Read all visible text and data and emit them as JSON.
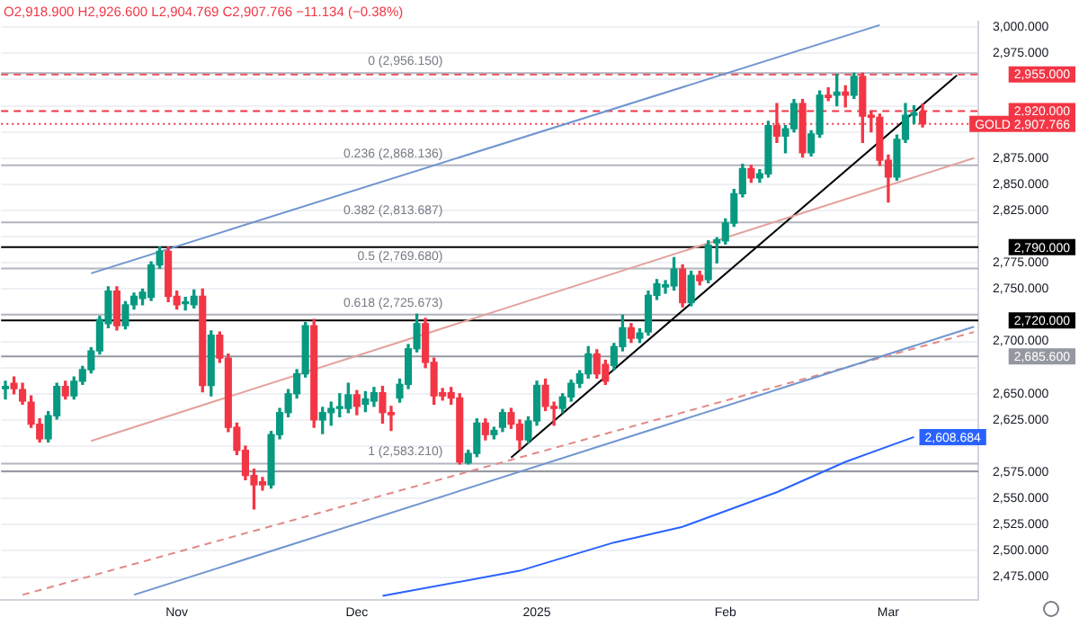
{
  "chart_data": {
    "type": "candlestick",
    "title": "O2,918.900 H2,926.600 L2,904.769 C2,907.766 −11.134 (−0.38%)",
    "categories": [
      null,
      null,
      null,
      null,
      null,
      null,
      null,
      null,
      null,
      null,
      null,
      null,
      null,
      null,
      null,
      null,
      null,
      null,
      null,
      null,
      "Nov",
      null,
      null,
      null,
      null,
      null,
      null,
      null,
      null,
      null,
      null,
      null,
      null,
      null,
      null,
      null,
      null,
      null,
      null,
      null,
      null,
      "Dec",
      null,
      null,
      null,
      null,
      null,
      null,
      null,
      null,
      null,
      null,
      null,
      null,
      null,
      null,
      null,
      null,
      null,
      null,
      null,
      null,
      "2025",
      null,
      null,
      null,
      null,
      null,
      null,
      null,
      null,
      null,
      null,
      null,
      null,
      null,
      null,
      null,
      null,
      null,
      null,
      null,
      null,
      null,
      "Feb",
      null,
      null,
      null,
      null,
      null,
      null,
      null,
      null,
      null,
      null,
      null,
      null,
      null,
      null,
      null,
      null,
      null,
      null,
      "Mar",
      null,
      null,
      null,
      null,
      null,
      null,
      null,
      null,
      null,
      null
    ],
    "ohlc": [
      [
        2655,
        2662,
        2645,
        2657
      ],
      [
        2660,
        2666,
        2650,
        2655
      ],
      [
        2654,
        2660,
        2640,
        2643
      ],
      [
        2642,
        2648,
        2618,
        2621
      ],
      [
        2621,
        2626,
        2604,
        2607
      ],
      [
        2607,
        2633,
        2604,
        2629
      ],
      [
        2629,
        2660,
        2626,
        2657
      ],
      [
        2657,
        2662,
        2645,
        2648
      ],
      [
        2648,
        2666,
        2645,
        2662
      ],
      [
        2662,
        2676,
        2659,
        2673
      ],
      [
        2673,
        2694,
        2670,
        2691
      ],
      [
        2691,
        2724,
        2688,
        2721
      ],
      [
        2717,
        2752,
        2713,
        2748
      ],
      [
        2748,
        2752,
        2711,
        2715
      ],
      [
        2715,
        2738,
        2712,
        2735
      ],
      [
        2735,
        2746,
        2731,
        2743
      ],
      [
        2741,
        2750,
        2735,
        2747
      ],
      [
        2742,
        2776,
        2739,
        2773
      ],
      [
        2773,
        2790,
        2770,
        2786
      ],
      [
        2786,
        2790,
        2738,
        2743
      ],
      [
        2743,
        2748,
        2731,
        2735
      ],
      [
        2736,
        2742,
        2730,
        2737
      ],
      [
        2735,
        2749,
        2732,
        2743
      ],
      [
        2743,
        2750,
        2652,
        2658
      ],
      [
        2658,
        2710,
        2648,
        2706
      ],
      [
        2706,
        2709,
        2680,
        2684
      ],
      [
        2684,
        2688,
        2614,
        2618
      ],
      [
        2618,
        2622,
        2592,
        2596
      ],
      [
        2596,
        2600,
        2568,
        2572
      ],
      [
        2572,
        2578,
        2540,
        2563
      ],
      [
        2566,
        2570,
        2558,
        2563
      ],
      [
        2563,
        2614,
        2560,
        2611
      ],
      [
        2611,
        2636,
        2607,
        2632
      ],
      [
        2632,
        2654,
        2628,
        2650
      ],
      [
        2650,
        2673,
        2646,
        2669
      ],
      [
        2669,
        2718,
        2666,
        2715
      ],
      [
        2715,
        2721,
        2618,
        2625
      ],
      [
        2625,
        2637,
        2612,
        2632
      ],
      [
        2632,
        2642,
        2620,
        2636
      ],
      [
        2636,
        2650,
        2628,
        2637
      ],
      [
        2636,
        2660,
        2632,
        2649
      ],
      [
        2649,
        2653,
        2630,
        2638
      ],
      [
        2640,
        2652,
        2633,
        2645
      ],
      [
        2643,
        2656,
        2638,
        2651
      ],
      [
        2651,
        2657,
        2622,
        2632
      ],
      [
        2632,
        2638,
        2615,
        2630
      ],
      [
        2646,
        2664,
        2642,
        2659
      ],
      [
        2659,
        2697,
        2655,
        2693
      ],
      [
        2693,
        2726,
        2690,
        2717
      ],
      [
        2717,
        2722,
        2675,
        2680
      ],
      [
        2680,
        2684,
        2640,
        2648
      ],
      [
        2651,
        2655,
        2644,
        2648
      ],
      [
        2651,
        2656,
        2640,
        2646
      ],
      [
        2646,
        2650,
        2583,
        2585
      ],
      [
        2584,
        2596,
        2583,
        2593
      ],
      [
        2593,
        2626,
        2590,
        2622
      ],
      [
        2622,
        2626,
        2606,
        2611
      ],
      [
        2611,
        2618,
        2607,
        2615
      ],
      [
        2618,
        2635,
        2614,
        2632
      ],
      [
        2632,
        2636,
        2617,
        2621
      ],
      [
        2621,
        2625,
        2597,
        2606
      ],
      [
        2606,
        2628,
        2603,
        2624
      ],
      [
        2624,
        2662,
        2620,
        2658
      ],
      [
        2658,
        2664,
        2634,
        2638
      ],
      [
        2638,
        2642,
        2620,
        2636
      ],
      [
        2636,
        2650,
        2632,
        2647
      ],
      [
        2647,
        2663,
        2643,
        2660
      ],
      [
        2660,
        2672,
        2656,
        2669
      ],
      [
        2669,
        2695,
        2665,
        2688
      ],
      [
        2688,
        2692,
        2665,
        2669
      ],
      [
        2678,
        2682,
        2659,
        2662
      ],
      [
        2677,
        2698,
        2673,
        2695
      ],
      [
        2695,
        2725,
        2691,
        2713
      ],
      [
        2713,
        2717,
        2699,
        2703
      ],
      [
        2703,
        2712,
        2699,
        2708
      ],
      [
        2709,
        2748,
        2706,
        2744
      ],
      [
        2744,
        2759,
        2740,
        2755
      ],
      [
        2752,
        2758,
        2746,
        2754
      ],
      [
        2753,
        2780,
        2749,
        2769
      ],
      [
        2769,
        2773,
        2733,
        2737
      ],
      [
        2737,
        2767,
        2734,
        2763
      ],
      [
        2763,
        2767,
        2754,
        2758
      ],
      [
        2759,
        2796,
        2756,
        2792
      ],
      [
        2794,
        2799,
        2775,
        2797
      ],
      [
        2796,
        2817,
        2793,
        2813
      ],
      [
        2813,
        2845,
        2810,
        2841
      ],
      [
        2841,
        2869,
        2838,
        2865
      ],
      [
        2865,
        2868,
        2852,
        2856
      ],
      [
        2856,
        2864,
        2852,
        2860
      ],
      [
        2860,
        2910,
        2857,
        2906
      ],
      [
        2906,
        2927,
        2890,
        2896
      ],
      [
        2896,
        2906,
        2880,
        2903
      ],
      [
        2903,
        2931,
        2900,
        2927
      ],
      [
        2927,
        2931,
        2876,
        2880
      ],
      [
        2880,
        2901,
        2877,
        2898
      ],
      [
        2898,
        2939,
        2895,
        2935
      ],
      [
        2935,
        2942,
        2930,
        2933
      ],
      [
        2935,
        2955,
        2925,
        2938
      ],
      [
        2938,
        2944,
        2924,
        2935
      ],
      [
        2935,
        2956,
        2932,
        2953
      ],
      [
        2953,
        2956,
        2890,
        2915
      ],
      [
        2916,
        2920,
        2900,
        2914
      ],
      [
        2914,
        2917,
        2868,
        2873
      ],
      [
        2873,
        2878,
        2833,
        2857
      ],
      [
        2857,
        2897,
        2854,
        2893
      ],
      [
        2893,
        2927,
        2890,
        2916
      ],
      [
        2916,
        2925,
        2908,
        2918
      ],
      [
        2918.9,
        2926.6,
        2904.769,
        2907.766
      ],
      null,
      null,
      null,
      null,
      null,
      null
    ],
    "series": [
      {
        "type": "line",
        "color": "#6f95cf",
        "values": [
          null,
          null,
          null,
          null,
          null,
          null,
          null,
          null,
          null,
          null,
          2765,
          null,
          null,
          null,
          null,
          null,
          null,
          null,
          null,
          null,
          null,
          null,
          null,
          null,
          null,
          null,
          null,
          null,
          null,
          null,
          null,
          null,
          null,
          null,
          null,
          null,
          null,
          null,
          null,
          null,
          null,
          null,
          null,
          null,
          null,
          null,
          null,
          null,
          null,
          null,
          null,
          null,
          null,
          null,
          null,
          null,
          null,
          null,
          null,
          null,
          null,
          null,
          null,
          null,
          null,
          null,
          null,
          null,
          null,
          null,
          null,
          null,
          null,
          null,
          null,
          null,
          null,
          null,
          null,
          null,
          null,
          null,
          null,
          null,
          null,
          null,
          null,
          null,
          null,
          null,
          null,
          null,
          null,
          null,
          null,
          null,
          null,
          null,
          null,
          null,
          null,
          null,
          3002,
          null,
          null,
          null,
          null,
          null,
          null,
          null,
          null,
          null,
          null,
          null
        ]
      },
      {
        "type": "line",
        "color": "#e3a29c",
        "values": [
          null,
          null,
          null,
          null,
          null,
          null,
          null,
          null,
          null,
          null,
          2605,
          null,
          null,
          null,
          null,
          null,
          null,
          null,
          null,
          null,
          null,
          null,
          null,
          null,
          null,
          null,
          null,
          null,
          null,
          null,
          null,
          null,
          null,
          null,
          null,
          null,
          null,
          null,
          null,
          null,
          null,
          null,
          null,
          null,
          null,
          null,
          null,
          null,
          null,
          null,
          null,
          null,
          null,
          null,
          null,
          null,
          null,
          null,
          null,
          null,
          null,
          null,
          null,
          null,
          null,
          null,
          null,
          null,
          null,
          null,
          null,
          null,
          null,
          null,
          null,
          null,
          null,
          null,
          null,
          null,
          null,
          null,
          null,
          null,
          null,
          null,
          null,
          null,
          null,
          null,
          null,
          null,
          null,
          null,
          null,
          null,
          null,
          null,
          null,
          null,
          null,
          null,
          null,
          null,
          null,
          null,
          null,
          null,
          null,
          null,
          null,
          null,
          null,
          2875
        ]
      },
      {
        "type": "line",
        "color": "#6f95cf",
        "values": [
          null,
          null,
          null,
          null,
          null,
          null,
          null,
          null,
          null,
          null,
          null,
          null,
          null,
          null,
          null,
          2458,
          null,
          null,
          null,
          null,
          null,
          null,
          null,
          null,
          null,
          null,
          null,
          null,
          null,
          null,
          null,
          null,
          null,
          null,
          null,
          null,
          null,
          null,
          null,
          null,
          null,
          null,
          null,
          null,
          null,
          null,
          null,
          null,
          null,
          null,
          null,
          null,
          null,
          null,
          null,
          null,
          null,
          null,
          null,
          null,
          null,
          null,
          null,
          null,
          null,
          null,
          null,
          null,
          null,
          null,
          null,
          null,
          null,
          null,
          null,
          null,
          null,
          null,
          null,
          null,
          null,
          null,
          null,
          null,
          null,
          null,
          null,
          null,
          null,
          null,
          null,
          null,
          null,
          null,
          null,
          null,
          null,
          null,
          null,
          null,
          null,
          null,
          null,
          null,
          null,
          null,
          null,
          null,
          null,
          null,
          null,
          null,
          null,
          2714
        ]
      },
      {
        "type": "line",
        "color": "#e08a86",
        "line_style": "dashed",
        "values": [
          null,
          null,
          2458,
          null,
          null,
          null,
          null,
          null,
          null,
          null,
          null,
          null,
          null,
          null,
          null,
          null,
          null,
          null,
          null,
          null,
          null,
          null,
          null,
          null,
          null,
          null,
          null,
          null,
          null,
          null,
          null,
          null,
          null,
          null,
          null,
          null,
          null,
          null,
          null,
          null,
          null,
          null,
          null,
          null,
          null,
          null,
          null,
          null,
          null,
          null,
          null,
          null,
          null,
          null,
          null,
          null,
          null,
          null,
          null,
          null,
          null,
          null,
          null,
          null,
          null,
          null,
          null,
          null,
          null,
          null,
          null,
          null,
          null,
          null,
          null,
          null,
          null,
          null,
          null,
          null,
          null,
          null,
          null,
          null,
          null,
          null,
          null,
          null,
          null,
          null,
          null,
          null,
          null,
          null,
          null,
          null,
          null,
          null,
          null,
          null,
          null,
          null,
          null,
          null,
          null,
          null,
          null,
          null,
          null,
          null,
          null,
          null,
          null,
          2709
        ]
      },
      {
        "type": "line",
        "color": "#000000",
        "values": [
          null,
          null,
          null,
          null,
          null,
          null,
          null,
          null,
          null,
          null,
          null,
          null,
          null,
          null,
          null,
          null,
          null,
          null,
          null,
          null,
          null,
          null,
          null,
          null,
          null,
          null,
          null,
          null,
          null,
          null,
          null,
          null,
          null,
          null,
          null,
          null,
          null,
          null,
          null,
          null,
          null,
          null,
          null,
          null,
          null,
          null,
          null,
          null,
          null,
          null,
          null,
          null,
          null,
          null,
          null,
          null,
          null,
          null,
          null,
          2589,
          null,
          null,
          null,
          null,
          null,
          null,
          null,
          null,
          null,
          null,
          null,
          null,
          null,
          null,
          null,
          null,
          null,
          null,
          null,
          null,
          null,
          null,
          null,
          null,
          null,
          null,
          null,
          null,
          null,
          null,
          null,
          null,
          null,
          null,
          null,
          null,
          null,
          null,
          null,
          null,
          null,
          null,
          null,
          null,
          null,
          null,
          null,
          null,
          null,
          null,
          null,
          2954,
          null,
          null
        ]
      },
      {
        "type": "line",
        "color": "#2962ff",
        "values": [
          null,
          null,
          null,
          null,
          null,
          null,
          null,
          null,
          null,
          null,
          null,
          null,
          null,
          null,
          null,
          null,
          null,
          null,
          null,
          null,
          null,
          null,
          null,
          null,
          null,
          null,
          null,
          null,
          null,
          null,
          null,
          null,
          null,
          null,
          null,
          null,
          null,
          null,
          null,
          null,
          null,
          null,
          null,
          null,
          2457,
          null,
          null,
          null,
          null,
          null,
          null,
          null,
          null,
          null,
          null,
          null,
          null,
          null,
          null,
          null,
          2481,
          null,
          null,
          null,
          null,
          null,
          null,
          null,
          null,
          null,
          null,
          2508,
          null,
          null,
          null,
          null,
          null,
          null,
          null,
          2523,
          null,
          null,
          null,
          null,
          null,
          null,
          null,
          null,
          null,
          null,
          2556,
          null,
          null,
          null,
          null,
          null,
          null,
          null,
          2585,
          null,
          null,
          null,
          null,
          null,
          null,
          null,
          2608.684,
          null,
          null,
          null,
          null,
          null,
          null,
          null
        ],
        "value_labels": [
          null,
          null,
          null,
          null,
          null,
          null,
          null,
          null,
          null,
          null,
          null,
          null,
          null,
          null,
          null,
          null,
          null,
          null,
          null,
          null,
          null,
          null,
          null,
          null,
          null,
          null,
          null,
          null,
          null,
          null,
          null,
          null,
          null,
          null,
          null,
          null,
          null,
          null,
          null,
          null,
          null,
          null,
          null,
          null,
          null,
          null,
          null,
          null,
          null,
          null,
          null,
          null,
          null,
          null,
          null,
          null,
          null,
          null,
          null,
          null,
          null,
          null,
          null,
          null,
          null,
          null,
          null,
          null,
          null,
          null,
          null,
          null,
          null,
          null,
          null,
          null,
          null,
          null,
          null,
          null,
          null,
          null,
          null,
          null,
          null,
          null,
          null,
          null,
          null,
          null,
          null,
          null,
          null,
          null,
          null,
          null,
          null,
          null,
          null,
          null,
          null,
          null,
          null,
          null,
          null,
          null,
          "2,608.684",
          null,
          null,
          null,
          null,
          null,
          null,
          null
        ]
      }
    ],
    "ylim": [
      2453,
      3005
    ],
    "yticks": [
      {
        "value": 2475,
        "label": "2,475.000"
      },
      {
        "value": 2500,
        "label": "2,500.000"
      },
      {
        "value": 2525,
        "label": "2,525.000"
      },
      {
        "value": 2550,
        "label": "2,550.000"
      },
      {
        "value": 2575,
        "label": "2,575.000"
      },
      {
        "value": 2600,
        "label": null
      },
      {
        "value": 2625,
        "label": "2,625.000"
      },
      {
        "value": 2650,
        "label": "2,650.000"
      },
      {
        "value": 2675,
        "label": null
      },
      {
        "value": 2700,
        "label": "2,700.000"
      },
      {
        "value": 2725,
        "label": null
      },
      {
        "value": 2750,
        "label": "2,750.000"
      },
      {
        "value": 2775,
        "label": "2,775.000"
      },
      {
        "value": 2800,
        "label": null
      },
      {
        "value": 2825,
        "label": "2,825.000"
      },
      {
        "value": 2850,
        "label": "2,850.000"
      },
      {
        "value": 2875,
        "label": "2,875.000"
      },
      {
        "value": 2900,
        "label": null
      },
      {
        "value": 2925,
        "label": null
      },
      {
        "value": 2950,
        "label": null
      },
      {
        "value": 2975,
        "label": "2,975.000"
      },
      {
        "value": 3000,
        "label": "3,000.000"
      }
    ],
    "grid": "y",
    "ref_lines": [
      {
        "axis": "y",
        "value": 2955,
        "label": "2,955.000",
        "color": "#f23645",
        "line_style": "dashed"
      },
      {
        "axis": "y",
        "value": 2920,
        "label": "2,920.000",
        "color": "#f23645",
        "line_style": "dashed"
      },
      {
        "axis": "y",
        "value": 2907.766,
        "label": "GOLD 2,907.766",
        "color": "#f23645",
        "line_style": "dotted"
      },
      {
        "axis": "y",
        "value": 2790,
        "label": "2,790.000",
        "color": "#000000"
      },
      {
        "axis": "y",
        "value": 2720,
        "label": "2,720.000",
        "color": "#000000"
      },
      {
        "axis": "y",
        "value": 2685.6,
        "label": "2,685.600",
        "color": "#9598a1"
      },
      {
        "axis": "y",
        "value": 2576,
        "color": "#9598a1"
      },
      {
        "axis": "y",
        "value": 2956.15,
        "color": "#b2b5be"
      },
      {
        "axis": "y",
        "value": 2868.136,
        "color": "#b2b5be"
      },
      {
        "axis": "y",
        "value": 2813.687,
        "color": "#b2b5be"
      },
      {
        "axis": "y",
        "value": 2769.68,
        "color": "#b2b5be"
      },
      {
        "axis": "y",
        "value": 2725.673,
        "color": "#b2b5be"
      },
      {
        "axis": "y",
        "value": 2583.21,
        "color": "#b2b5be"
      }
    ],
    "annotations": [
      {
        "text": "0 (2,956.150)",
        "y": 2956.15
      },
      {
        "text": "0.236 (2,868.136)",
        "y": 2868.136
      },
      {
        "text": "0.382 (2,813.687)",
        "y": 2813.687
      },
      {
        "text": "0.5 (2,769.680)",
        "y": 2769.68
      },
      {
        "text": "0.618 (2,725.673)",
        "y": 2725.673
      },
      {
        "text": "1 (2,583.210)",
        "y": 2583.21
      }
    ]
  }
}
